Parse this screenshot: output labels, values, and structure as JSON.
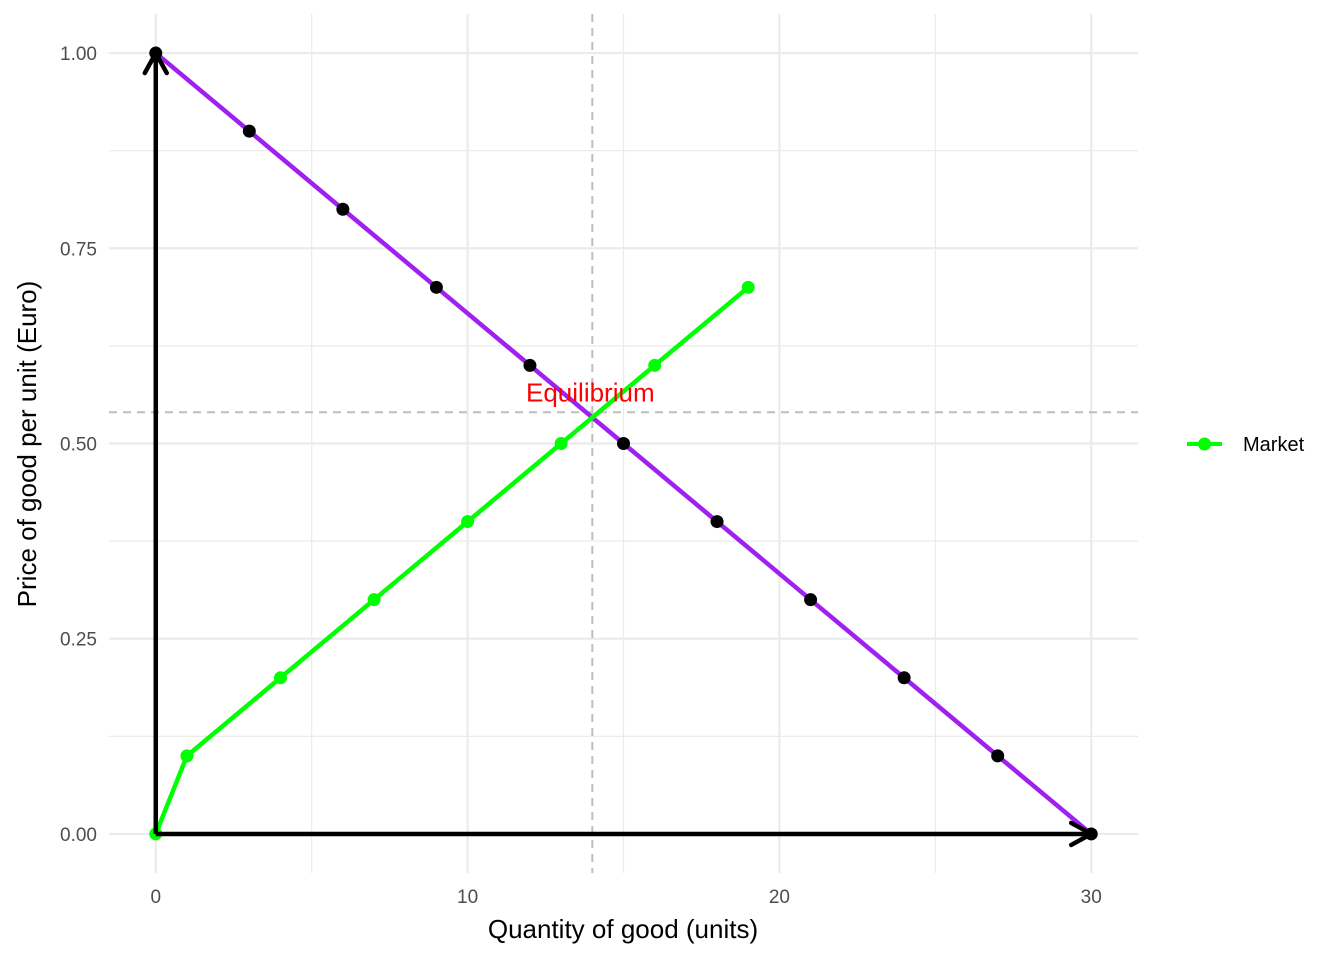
{
  "chart_data": {
    "type": "line",
    "title": "",
    "xlabel": "Quantity of good (units)",
    "ylabel": "Price of good per unit (Euro)",
    "xlim": [
      -1.5,
      31.5
    ],
    "ylim": [
      -0.05,
      1.05
    ],
    "x_ticks": [
      0,
      10,
      20,
      30
    ],
    "x_tick_labels": [
      "0",
      "10",
      "20",
      "30"
    ],
    "x_minor_ticks": [
      5,
      15,
      25
    ],
    "y_ticks": [
      0,
      0.25,
      0.5,
      0.75,
      1.0
    ],
    "y_tick_labels": [
      "0.00",
      "0.25",
      "0.50",
      "0.75",
      "1.00"
    ],
    "y_minor_ticks": [
      0.125,
      0.375,
      0.625,
      0.875
    ],
    "grid": true,
    "series": [
      {
        "name": "",
        "color": "#A020F0",
        "point_color": "#000000",
        "x": [
          0,
          3,
          6,
          9,
          12,
          15,
          18,
          21,
          24,
          27,
          30
        ],
        "y": [
          1.0,
          0.9,
          0.8,
          0.7,
          0.6,
          0.5,
          0.4,
          0.3,
          0.2,
          0.1,
          0.0
        ]
      },
      {
        "name": "Market",
        "color": "#00FF00",
        "point_color": "#00FF00",
        "x": [
          0,
          1,
          4,
          7,
          10,
          13,
          16,
          19
        ],
        "y": [
          0.0,
          0.1,
          0.2,
          0.3,
          0.4,
          0.5,
          0.6,
          0.7
        ]
      }
    ],
    "reference_lines": {
      "vertical_x": 14,
      "horizontal_y": 0.54,
      "color": "#BEBEBE",
      "style": "dashed"
    },
    "axis_arrows": {
      "color": "#000000",
      "x_arrow": {
        "from": [
          0,
          0
        ],
        "to": [
          30,
          0
        ]
      },
      "y_arrow": {
        "from": [
          0,
          0
        ],
        "to": [
          0,
          1
        ]
      }
    },
    "annotations": [
      {
        "text": "Equilibrium",
        "x": 14.0,
        "y": 0.565,
        "color": "#FF0000"
      }
    ],
    "legend": {
      "placement": "right",
      "entries": [
        "Market"
      ]
    }
  }
}
